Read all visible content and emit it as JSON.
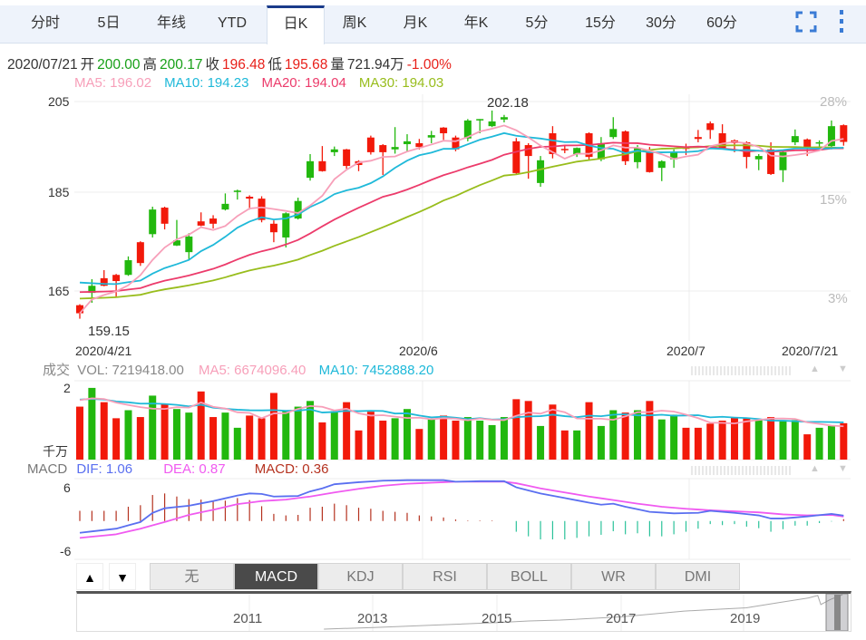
{
  "tabs": [
    {
      "label": "分时"
    },
    {
      "label": "5日"
    },
    {
      "label": "年线"
    },
    {
      "label": "YTD"
    },
    {
      "label": "日K",
      "active": true
    },
    {
      "label": "周K"
    },
    {
      "label": "月K"
    },
    {
      "label": "年K"
    },
    {
      "label": "5分"
    },
    {
      "label": "15分"
    },
    {
      "label": "30分"
    },
    {
      "label": "60分"
    }
  ],
  "icons": {
    "fullscreen": "fullscreen-icon",
    "more": "more-vertical-icon"
  },
  "info": {
    "date": "2020/07/21",
    "open_label": "开",
    "open": "200.00",
    "high_label": "高",
    "high": "200.17",
    "close_label": "收",
    "close": "196.48",
    "low_label": "低",
    "low": "195.68",
    "vol_label": "量",
    "vol": "721.94万",
    "change": "-1.00%"
  },
  "ma": {
    "ma5": "MA5: 196.02",
    "ma10": "MA10: 194.23",
    "ma20": "MA20: 194.04",
    "ma30": "MA30: 194.03"
  },
  "colors": {
    "up": "#22b80e",
    "down": "#f2190a",
    "ma5": "#f79fb9",
    "ma10": "#1fb9d9",
    "ma20": "#ec3b6b",
    "ma30": "#98bd1c",
    "dif": "#5a6ff0",
    "dea": "#f05af0",
    "hist_pos": "#b5321f",
    "hist_neg": "#2bc29a"
  },
  "price_axis": {
    "labels": [
      "205",
      "185",
      "165"
    ],
    "pct": [
      "28%",
      "15%",
      "3%"
    ],
    "max_label": "202.18",
    "min_label": "159.15"
  },
  "date_axis": [
    "2020/4/21",
    "2020/6",
    "2020/7",
    "2020/7/21"
  ],
  "volume": {
    "title": "成交",
    "vol": "VOL: 7219418.00",
    "ma5": "MA5: 6674096.40",
    "ma10": "MA10: 7452888.20",
    "top_label": "2",
    "unit_label": "千万"
  },
  "macd": {
    "title": "MACD",
    "dif": "DIF: 1.06",
    "dea": "DEA: 0.87",
    "macd": "MACD: 0.36",
    "top_label": "6",
    "bottom_label": "-6"
  },
  "indicator_tabs": [
    {
      "label": "无"
    },
    {
      "label": "MACD",
      "active": true
    },
    {
      "label": "KDJ"
    },
    {
      "label": "RSI"
    },
    {
      "label": "BOLL"
    },
    {
      "label": "WR"
    },
    {
      "label": "DMI"
    }
  ],
  "arrows": {
    "up": "▲",
    "down": "▼"
  },
  "minimap": {
    "years": [
      "2011",
      "2013",
      "2015",
      "2017",
      "2019"
    ]
  },
  "chart_data": {
    "type": "candlestick",
    "price_range": [
      160.5,
      205
    ],
    "candles": [
      [
        162,
        162.2,
        159.15,
        160.3
      ],
      [
        164.6,
        167.5,
        162.5,
        166.1
      ],
      [
        167.7,
        169.4,
        166,
        166.1
      ],
      [
        168.4,
        168.6,
        163.7,
        167.1
      ],
      [
        168.4,
        172.3,
        168.2,
        171.5
      ],
      [
        175.3,
        175.5,
        170.3,
        170.9
      ],
      [
        177,
        182.8,
        176.3,
        182.2
      ],
      [
        182.6,
        182.8,
        178,
        179.2
      ],
      [
        174.6,
        180,
        174.5,
        175.7
      ],
      [
        173.2,
        177.2,
        171.7,
        176.5
      ],
      [
        179.7,
        181.6,
        178.7,
        178.8
      ],
      [
        180.3,
        181,
        178.2,
        179.2
      ],
      [
        182.2,
        185.6,
        182,
        183.4
      ],
      [
        185.9,
        186.4,
        184.3,
        186.2
      ],
      [
        184.9,
        185.2,
        182.2,
        184.5
      ],
      [
        184.5,
        185,
        179.5,
        180
      ],
      [
        179.2,
        179.9,
        175.3,
        177.4
      ],
      [
        176.3,
        181.6,
        174.2,
        181.4
      ],
      [
        180.3,
        184.7,
        180.1,
        184
      ],
      [
        188.9,
        193.9,
        188.3,
        192.4
      ],
      [
        192.4,
        195.6,
        190.2,
        190.3
      ],
      [
        194.3,
        195.5,
        193.5,
        194.9
      ],
      [
        194.9,
        195,
        190.8,
        191.4
      ],
      [
        192.4,
        192.6,
        190.3,
        191.6
      ],
      [
        197.4,
        197.8,
        193.8,
        194.3
      ],
      [
        195.8,
        196,
        189.5,
        194.3
      ],
      [
        194.9,
        199.6,
        194,
        195.4
      ],
      [
        196,
        198.1,
        194.5,
        196.6
      ],
      [
        196.2,
        197.1,
        194.9,
        195.4
      ],
      [
        197.4,
        198.8,
        196.2,
        197.9
      ],
      [
        199.5,
        199.6,
        196.9,
        198.3
      ],
      [
        197.4,
        197.8,
        194.5,
        194.9
      ],
      [
        197.2,
        201.3,
        196.6,
        201
      ],
      [
        201,
        201.3,
        198.3,
        201.3
      ],
      [
        199.8,
        203.1,
        199.6,
        200.8
      ],
      [
        201.2,
        202.18,
        200.6,
        201.7
      ],
      [
        196.6,
        197.3,
        189.7,
        189.9
      ],
      [
        195.8,
        196.2,
        188.7,
        193.5
      ],
      [
        187.8,
        193.5,
        187,
        192.6
      ],
      [
        198.3,
        199.8,
        193,
        193.9
      ],
      [
        195,
        195.8,
        194.1,
        194.8
      ],
      [
        193.9,
        195.3,
        193.3,
        195.2
      ],
      [
        198.3,
        198.5,
        192.6,
        193.3
      ],
      [
        192.8,
        197.5,
        192.4,
        196.2
      ],
      [
        197.5,
        201.7,
        197.1,
        199.2
      ],
      [
        198.7,
        198.9,
        191.6,
        192.4
      ],
      [
        192.2,
        195.8,
        190.9,
        195.2
      ],
      [
        194.3,
        195.4,
        190,
        190.1
      ],
      [
        191,
        192.6,
        188.2,
        192.4
      ],
      [
        192.8,
        194.9,
        191,
        194.3
      ],
      [
        195.4,
        196.1,
        193.7,
        195
      ],
      [
        197.5,
        199,
        196.4,
        197.1
      ],
      [
        200.4,
        200.8,
        197.1,
        199
      ],
      [
        198.3,
        200.2,
        194.9,
        195.2
      ],
      [
        196.8,
        197,
        194.3,
        196.2
      ],
      [
        196.4,
        196.6,
        190.9,
        193.3
      ],
      [
        192.8,
        193.9,
        190.5,
        193.5
      ],
      [
        194.9,
        196.4,
        189.5,
        189.7
      ],
      [
        190.5,
        194.6,
        188,
        194.3
      ],
      [
        196.4,
        199.1,
        195.8,
        197.7
      ],
      [
        197,
        197.2,
        193.5,
        195.2
      ],
      [
        196.2,
        196.8,
        195.2,
        196.4
      ],
      [
        195.6,
        201,
        194.9,
        199.8
      ],
      [
        200,
        200.17,
        195.68,
        196.48
      ]
    ],
    "volume_wan": [
      10502,
      14219,
      11387,
      8201,
      9794,
      8437,
      12685,
      11092,
      10030,
      9322,
      13511,
      8437,
      9322,
      6313,
      8732,
      8201,
      13216,
      9617,
      10502,
      11623,
      7375,
      9617,
      11387,
      5782,
      9499,
      7729,
      8201,
      10030,
      6077,
      8024,
      8732,
      7729,
      8437,
      7729,
      6844,
      8437,
      11977,
      11623,
      6667,
      10915,
      5782,
      5782,
      11387,
      6667,
      9794,
      9322,
      9794,
      11623,
      7965,
      8909,
      6313,
      6313,
      7139,
      7729,
      8319,
      8319,
      7847,
      8437,
      7847,
      7847,
      5015,
      6313,
      6667,
      7219
    ],
    "volume_range_wan": [
      0,
      14200
    ],
    "macd_hist": [
      2.0,
      2.0,
      2.0,
      2.0,
      2.8,
      3.1,
      5.1,
      5.4,
      4.8,
      4.3,
      4.2,
      3.9,
      4.0,
      4.5,
      4.1,
      2.9,
      1.4,
      1.1,
      1.2,
      2.6,
      2.8,
      3.4,
      3.1,
      2.6,
      2.4,
      2.0,
      1.8,
      1.6,
      1.1,
      0.9,
      0.7,
      0.3,
      0.1,
      0.1,
      0.1,
      0.0,
      -2.1,
      -3.0,
      -3.6,
      -3.6,
      -3.6,
      -3.3,
      -3.0,
      -2.7,
      -2.0,
      -2.6,
      -2.4,
      -3.0,
      -3.0,
      -2.6,
      -2.1,
      -1.5,
      -0.6,
      -0.8,
      -0.6,
      -1.1,
      -1.4,
      -2.1,
      -1.6,
      -0.9,
      -0.9,
      -0.4,
      -0.1,
      0.36
    ],
    "dif_points": [
      [
        0,
        -2.3
      ],
      [
        3,
        -1.5
      ],
      [
        5,
        -0.2
      ],
      [
        6,
        1.6
      ],
      [
        7,
        2.5
      ],
      [
        9,
        3.0
      ],
      [
        11,
        3.9
      ],
      [
        13,
        5.0
      ],
      [
        14,
        5.4
      ],
      [
        15,
        5.3
      ],
      [
        16,
        4.8
      ],
      [
        18,
        4.9
      ],
      [
        19,
        5.8
      ],
      [
        20,
        6.4
      ],
      [
        21,
        7.2
      ],
      [
        23,
        7.6
      ],
      [
        25,
        7.9
      ],
      [
        27,
        8.0
      ],
      [
        30,
        8.0
      ],
      [
        31,
        7.7
      ],
      [
        33,
        7.8
      ],
      [
        35,
        7.8
      ],
      [
        36,
        6.6
      ],
      [
        38,
        5.4
      ],
      [
        40,
        4.5
      ],
      [
        42,
        3.6
      ],
      [
        43,
        3.2
      ],
      [
        44,
        3.4
      ],
      [
        45,
        2.8
      ],
      [
        47,
        1.8
      ],
      [
        49,
        1.5
      ],
      [
        51,
        1.6
      ],
      [
        52,
        2.0
      ],
      [
        54,
        1.6
      ],
      [
        56,
        1.1
      ],
      [
        57,
        0.5
      ],
      [
        58,
        0.5
      ],
      [
        60,
        0.9
      ],
      [
        62,
        1.4
      ],
      [
        63,
        1.06
      ]
    ],
    "dea_points": [
      [
        0,
        -3.3
      ],
      [
        3,
        -2.6
      ],
      [
        5,
        -1.5
      ],
      [
        7,
        -0.2
      ],
      [
        9,
        1.2
      ],
      [
        11,
        2.2
      ],
      [
        13,
        3.3
      ],
      [
        15,
        3.9
      ],
      [
        17,
        4.2
      ],
      [
        19,
        4.8
      ],
      [
        21,
        5.6
      ],
      [
        23,
        6.3
      ],
      [
        25,
        6.9
      ],
      [
        27,
        7.3
      ],
      [
        29,
        7.5
      ],
      [
        31,
        7.7
      ],
      [
        35,
        7.7
      ],
      [
        36,
        7.4
      ],
      [
        38,
        6.4
      ],
      [
        40,
        5.6
      ],
      [
        42,
        4.8
      ],
      [
        44,
        4.1
      ],
      [
        46,
        3.4
      ],
      [
        48,
        2.8
      ],
      [
        50,
        2.4
      ],
      [
        52,
        2.1
      ],
      [
        54,
        1.9
      ],
      [
        56,
        1.7
      ],
      [
        58,
        1.3
      ],
      [
        60,
        1.1
      ],
      [
        62,
        1.2
      ],
      [
        63,
        0.87
      ]
    ],
    "macd_range": [
      -7.5,
      8.3
    ],
    "minimap_series": [
      [
        2012.2,
        0
      ],
      [
        2013,
        2
      ],
      [
        2014,
        5
      ],
      [
        2015,
        8
      ],
      [
        2015.5,
        10
      ],
      [
        2016,
        11
      ],
      [
        2017,
        15
      ],
      [
        2018,
        22
      ],
      [
        2018.5,
        24
      ],
      [
        2019,
        26
      ],
      [
        2019.5,
        32
      ],
      [
        2020,
        38
      ],
      [
        2020.15,
        41
      ],
      [
        2020.2,
        30
      ],
      [
        2020.35,
        36
      ],
      [
        2020.55,
        42
      ]
    ]
  }
}
